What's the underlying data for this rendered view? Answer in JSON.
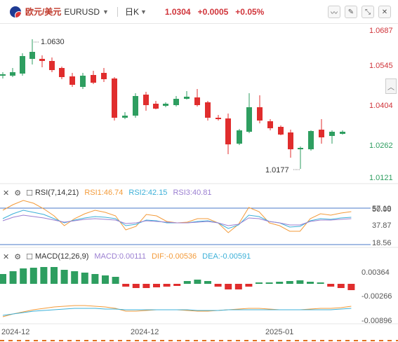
{
  "header": {
    "pair_cn": "欧元/美元",
    "pair_code": "EURUSD",
    "period": "日K",
    "price": "1.0304",
    "change": "+0.0005",
    "change_pct": "+0.05%"
  },
  "icons": {
    "flag": "eu-us-flag-icon",
    "tools": [
      "line-chart-icon",
      "pencil-icon",
      "expand-icon",
      "close-icon"
    ],
    "collapse": "chevron-up-icon"
  },
  "main_chart": {
    "y_labels": [
      "1.0687",
      "1.0545",
      "1.0404",
      "1.0262",
      "1.0121"
    ],
    "high_label": "1.0630",
    "low_label": "1.0177",
    "up_color": "#2e9e60",
    "down_color": "#e02d2d"
  },
  "rsi": {
    "title": "RSI(7,14,21)",
    "rsi1": "RSI1:46.74",
    "rsi2": "RSI2:42.15",
    "rsi3": "RSI3:40.81",
    "y_labels": [
      "57.19",
      "50.00",
      "37.87",
      "18.56"
    ],
    "colors": {
      "rsi1": "#f39b3a",
      "rsi2": "#3cb0d8",
      "rsi3": "#9b7fd1"
    }
  },
  "macd": {
    "title": "MACD(12,26,9)",
    "macd": "MACD:0.00111",
    "dif": "DIF:-0.00536",
    "dea": "DEA:-0.00591",
    "y_labels": [
      "0.00364",
      "-0.00266",
      "-0.00896"
    ],
    "colors": {
      "macd": "#9b7fd1",
      "dif": "#f39b3a",
      "dea": "#3cb0d8"
    }
  },
  "x_axis": [
    "2024-12",
    "2024-12",
    "2025-01"
  ]
}
